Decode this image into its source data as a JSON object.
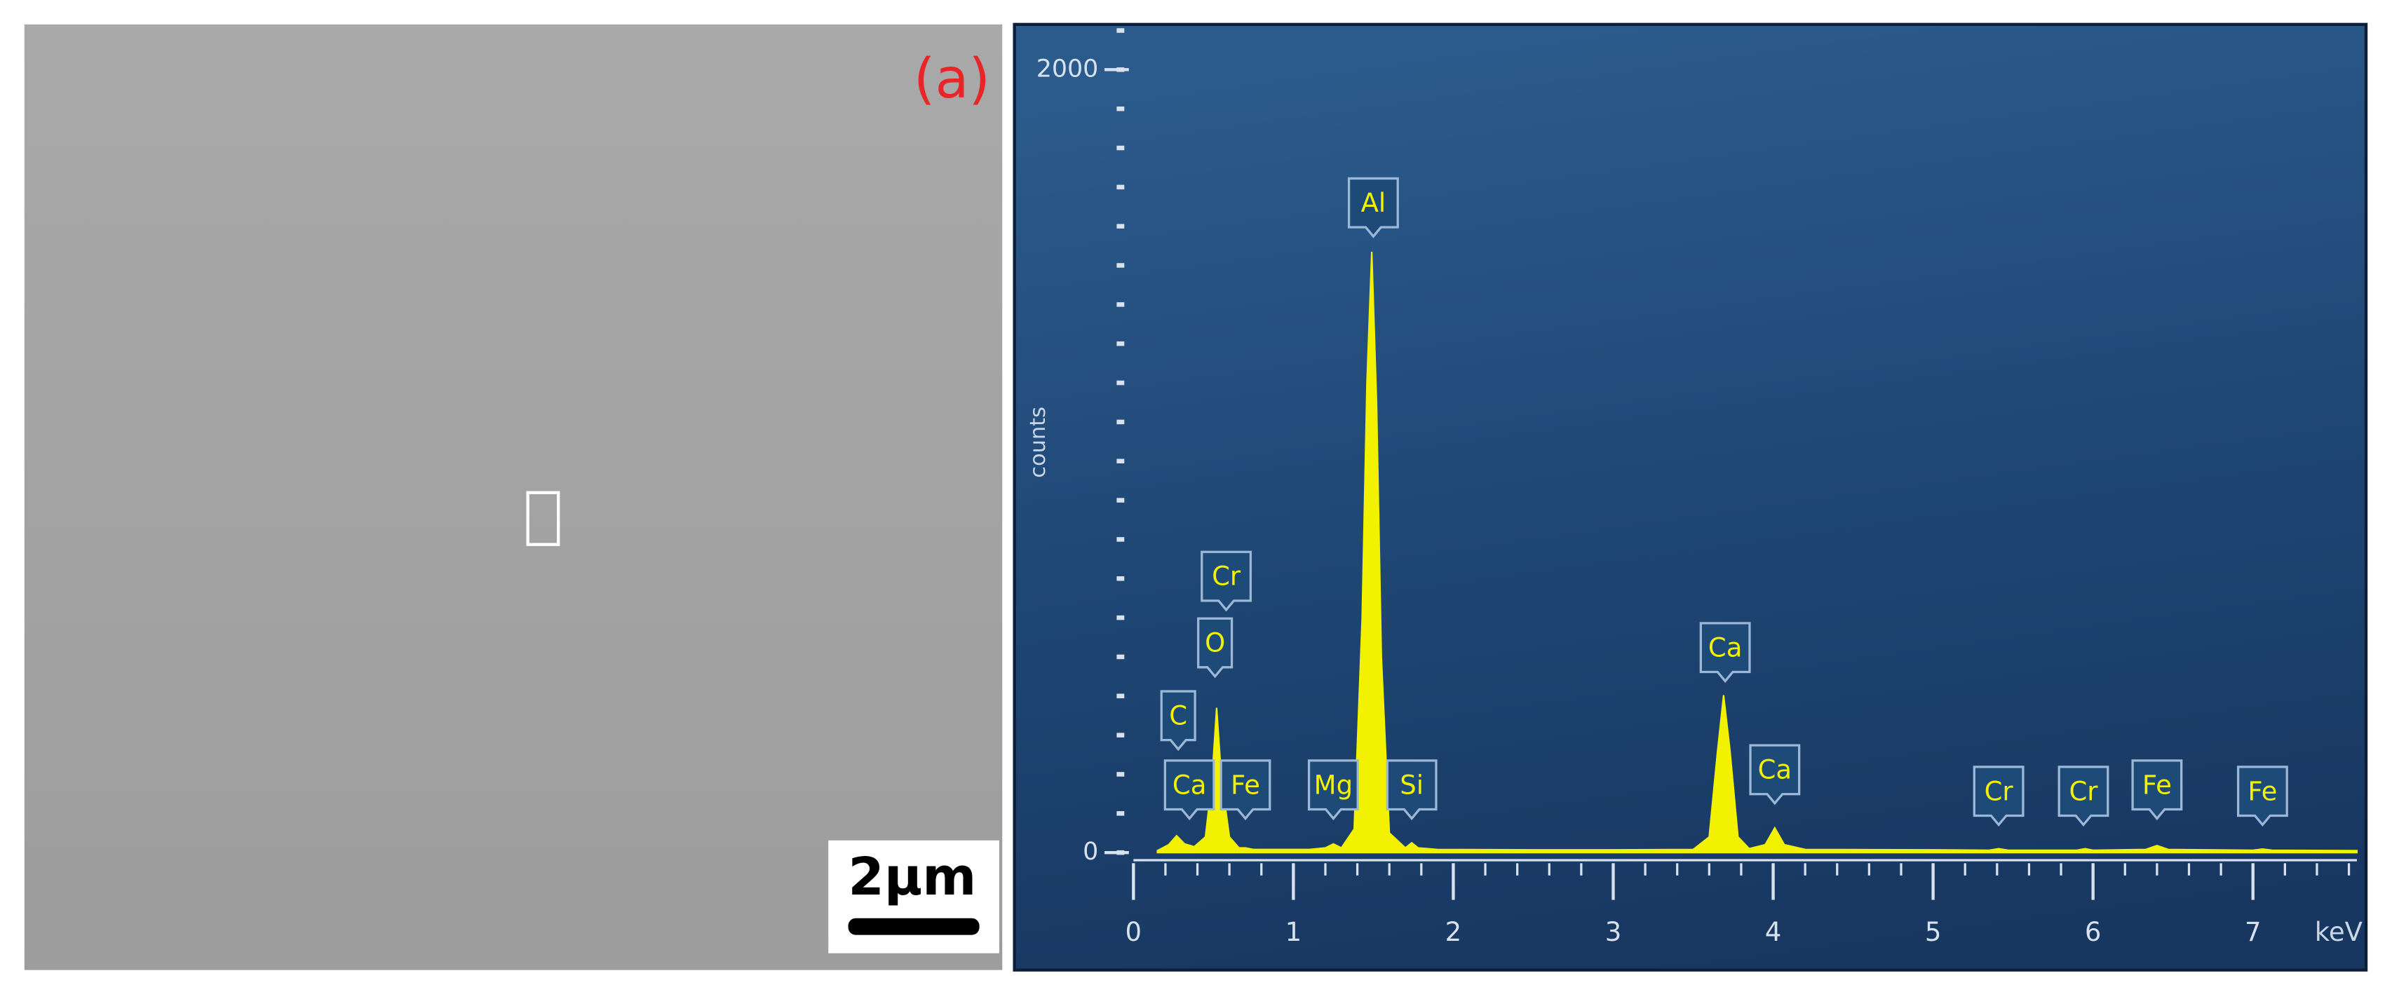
{
  "panel_label": "(a)",
  "scale_bar": "2μm",
  "chart_data": {
    "type": "area",
    "y_label": "counts",
    "x_label": "keV",
    "color": "#f2f200",
    "xlim": [
      0,
      7.65
    ],
    "ylim": [
      0,
      2100
    ],
    "xticks": [
      0,
      1,
      2,
      3,
      4,
      5,
      6,
      7
    ],
    "yticks": [
      0,
      2000
    ],
    "x": [
      0.15,
      0.22,
      0.27,
      0.32,
      0.38,
      0.45,
      0.49,
      0.52,
      0.55,
      0.6,
      0.66,
      0.7,
      0.75,
      0.9,
      1.1,
      1.2,
      1.25,
      1.3,
      1.38,
      1.43,
      1.46,
      1.49,
      1.52,
      1.55,
      1.6,
      1.7,
      1.74,
      1.78,
      1.9,
      2.5,
      3.0,
      3.5,
      3.6,
      3.65,
      3.69,
      3.73,
      3.78,
      3.85,
      3.95,
      4.01,
      4.07,
      4.2,
      5.0,
      5.35,
      5.41,
      5.47,
      5.9,
      5.95,
      6.0,
      6.33,
      6.4,
      6.47,
      7.0,
      7.06,
      7.12,
      7.65
    ],
    "values": [
      5,
      20,
      43,
      22,
      15,
      40,
      180,
      370,
      190,
      40,
      12,
      12,
      8,
      8,
      8,
      12,
      22,
      12,
      60,
      600,
      1200,
      1535,
      1150,
      500,
      50,
      12,
      25,
      12,
      8,
      7,
      7,
      8,
      40,
      250,
      402,
      260,
      40,
      10,
      20,
      63,
      20,
      8,
      7,
      6,
      10,
      6,
      6,
      10,
      6,
      8,
      18,
      8,
      6,
      9,
      6,
      5
    ],
    "annotations": [
      {
        "label": "C",
        "x": 0.28,
        "y": 264
      },
      {
        "label": "Ca",
        "x": 0.35,
        "y": 87
      },
      {
        "label": "O",
        "x": 0.51,
        "y": 450
      },
      {
        "label": "Cr",
        "x": 0.58,
        "y": 620
      },
      {
        "label": "Fe",
        "x": 0.7,
        "y": 87
      },
      {
        "label": "Mg",
        "x": 1.25,
        "y": 87
      },
      {
        "label": "Al",
        "x": 1.5,
        "y": 1574
      },
      {
        "label": "Si",
        "x": 1.74,
        "y": 87
      },
      {
        "label": "Ca",
        "x": 3.7,
        "y": 438
      },
      {
        "label": "Ca",
        "x": 4.01,
        "y": 126
      },
      {
        "label": "Cr",
        "x": 5.41,
        "y": 71
      },
      {
        "label": "Cr",
        "x": 5.94,
        "y": 71
      },
      {
        "label": "Fe",
        "x": 6.4,
        "y": 87
      },
      {
        "label": "Fe",
        "x": 7.06,
        "y": 71
      }
    ]
  }
}
